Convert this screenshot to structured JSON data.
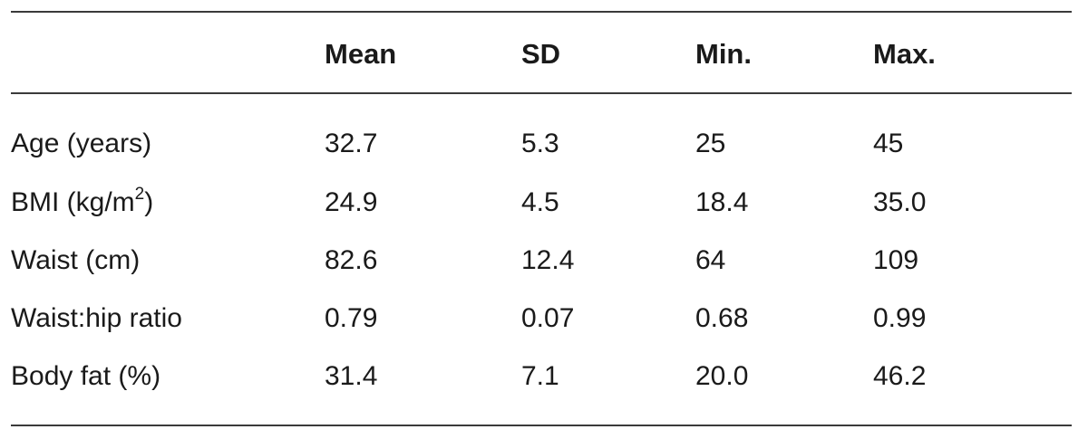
{
  "table": {
    "columns": [
      "",
      "Mean",
      "SD",
      "Min.",
      "Max."
    ],
    "rows": [
      {
        "label": "Age (years)",
        "label_sup": "",
        "label_after": "",
        "values": [
          "32.7",
          "5.3",
          "25",
          "45"
        ]
      },
      {
        "label": "BMI (kg/m",
        "label_sup": "2",
        "label_after": ")",
        "values": [
          "24.9",
          "4.5",
          "18.4",
          "35.0"
        ]
      },
      {
        "label": "Waist (cm)",
        "label_sup": "",
        "label_after": "",
        "values": [
          "82.6",
          "12.4",
          "64",
          "109"
        ]
      },
      {
        "label": "Waist:hip ratio",
        "label_sup": "",
        "label_after": "",
        "values": [
          "0.79",
          "0.07",
          "0.68",
          "0.99"
        ]
      },
      {
        "label": "Body fat (%)",
        "label_sup": "",
        "label_after": "",
        "values": [
          "31.4",
          "7.1",
          "20.0",
          "46.2"
        ]
      }
    ]
  }
}
